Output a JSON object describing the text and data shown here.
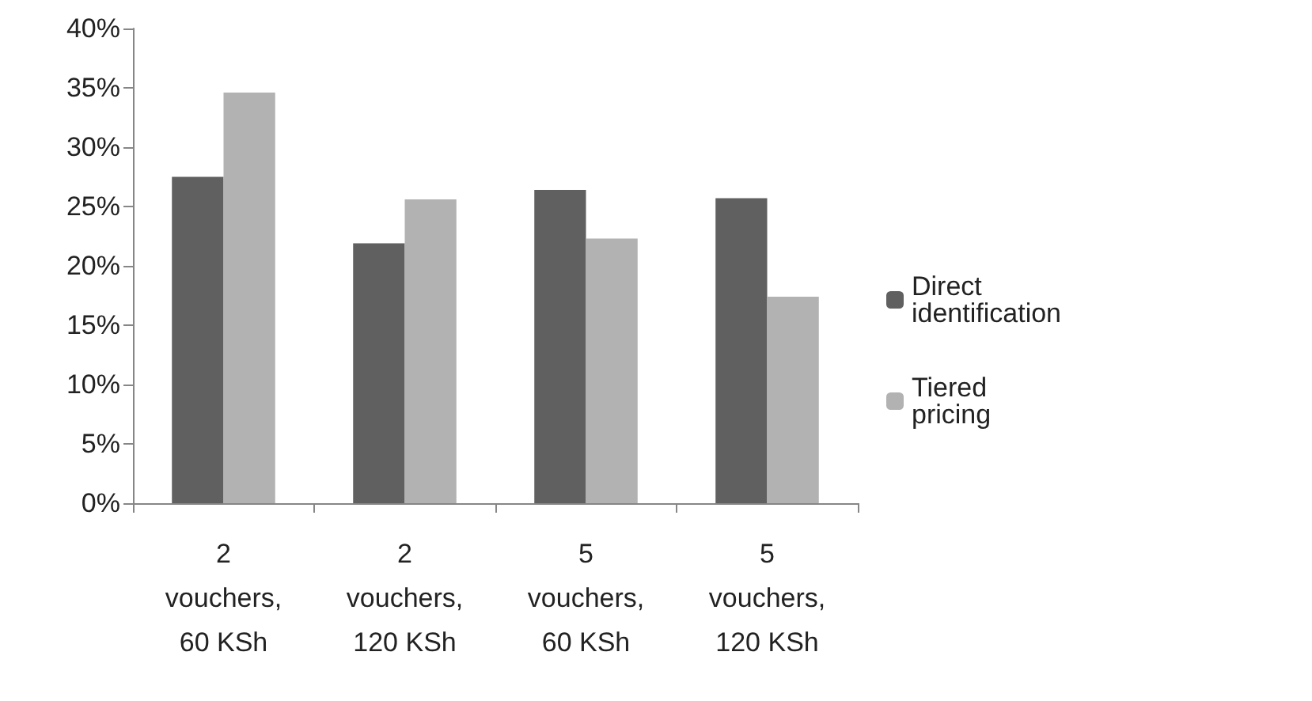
{
  "chart_data": {
    "type": "bar",
    "categories": [
      "2 vouchers, 60 KSh",
      "2 vouchers, 120 KSh",
      "5 vouchers, 60 KSh",
      "5 vouchers, 120 KSh"
    ],
    "series": [
      {
        "name": "Direct identification",
        "color": "#606060",
        "values": [
          27.5,
          21.9,
          26.4,
          25.7
        ]
      },
      {
        "name": "Tiered pricing",
        "color": "#b2b2b2",
        "values": [
          34.6,
          25.6,
          22.3,
          17.4
        ]
      }
    ],
    "ylim": [
      0,
      40
    ],
    "yticks": [
      {
        "value": 0,
        "label": "0%"
      },
      {
        "value": 5,
        "label": "5%"
      },
      {
        "value": 10,
        "label": "10%"
      },
      {
        "value": 15,
        "label": "15%"
      },
      {
        "value": 20,
        "label": "20%"
      },
      {
        "value": 25,
        "label": "25%"
      },
      {
        "value": 30,
        "label": "30%"
      },
      {
        "value": 35,
        "label": "35%"
      },
      {
        "value": 40,
        "label": "40%"
      }
    ],
    "grid": false,
    "legend": "right"
  }
}
